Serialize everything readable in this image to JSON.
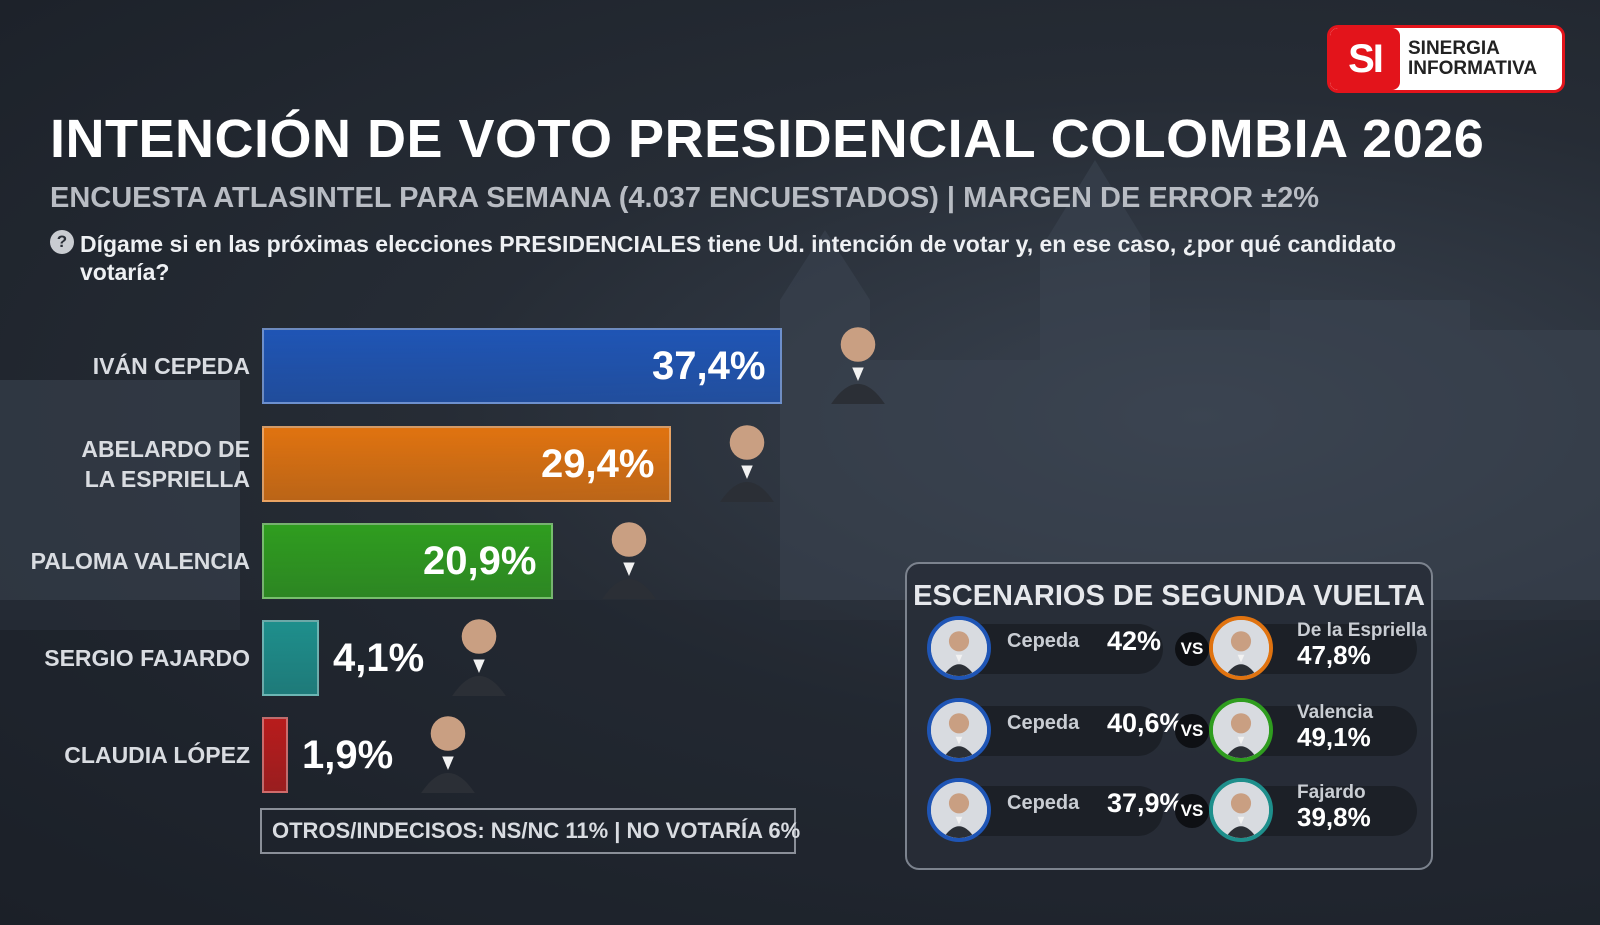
{
  "logo": {
    "mark": "SI",
    "line1": "SINERGIA",
    "line2": "INFORMATIVA"
  },
  "title": "INTENCIÓN DE VOTO PRESIDENCIAL COLOMBIA 2026",
  "subtitle": "ENCUESTA ATLASINTEL PARA SEMANA (4.037 ENCUESTADOS) | MARGEN DE ERROR ±2%",
  "question": "Dígame si en las próximas elecciones PRESIDENCIALES tiene Ud. intención de votar y, en ese caso, ¿por qué candidato votaría?",
  "question_icon": "?",
  "chart_data": {
    "type": "bar",
    "orientation": "horizontal",
    "title": "INTENCIÓN DE VOTO PRESIDENCIAL COLOMBIA 2026",
    "categories": [
      "IVÁN CEPEDA",
      "ABELARDO DE LA ESPRIELLA",
      "PALOMA VALENCIA",
      "SERGIO FAJARDO",
      "CLAUDIA LÓPEZ"
    ],
    "label_lines": [
      [
        "IVÁN CEPEDA"
      ],
      [
        "ABELARDO DE",
        "LA ESPRIELLA"
      ],
      [
        "PALOMA VALENCIA"
      ],
      [
        "SERGIO FAJARDO"
      ],
      [
        "CLAUDIA LÓPEZ"
      ]
    ],
    "values": [
      37.4,
      29.4,
      20.9,
      4.1,
      1.9
    ],
    "value_labels": [
      "37,4%",
      "29,4%",
      "20,9%",
      "4,1%",
      "1,9%"
    ],
    "colors": [
      "#1f55b5",
      "#e07310",
      "#2f9d1f",
      "#1e8f8c",
      "#b81c1c"
    ],
    "ylabel": "",
    "xlabel": ""
  },
  "footer": "OTROS/INDECISOS: NS/NC 11%  |  NO VOTARÍA 6%",
  "runoff": {
    "title": "ESCENARIOS DE SEGUNDA VUELTA",
    "vs_label": "VS",
    "scenarios": [
      {
        "left_name": "Cepeda",
        "left_pct": "42%",
        "right_name": "De la Espriella",
        "right_pct": "47,8%",
        "right_color": "#e07310"
      },
      {
        "left_name": "Cepeda",
        "left_pct": "40,6%",
        "right_name": "Valencia",
        "right_pct": "49,1%",
        "right_color": "#2f9d1f"
      },
      {
        "left_name": "Cepeda",
        "left_pct": "37,9%",
        "right_name": "Fajardo",
        "right_pct": "39,8%",
        "right_color": "#1e8f8c"
      }
    ],
    "left_color": "#1f55b5"
  }
}
